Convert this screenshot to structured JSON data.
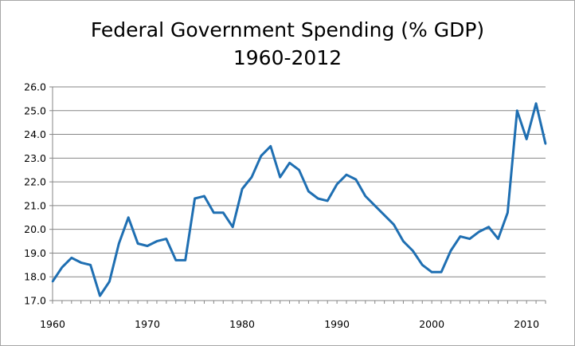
{
  "chart_data": {
    "type": "line",
    "title_lines": [
      "Federal Government Spending (% GDP)",
      "1960-2012"
    ],
    "xlabel": "",
    "ylabel": "",
    "xlim": [
      1960,
      2012
    ],
    "ylim": [
      17.0,
      26.0
    ],
    "y_ticks": [
      "17.0",
      "18.0",
      "19.0",
      "20.0",
      "21.0",
      "22.0",
      "23.0",
      "24.0",
      "25.0",
      "26.0"
    ],
    "x_ticks": [
      "1960",
      "1970",
      "1980",
      "1990",
      "2000",
      "2010"
    ],
    "grid": "horizontal",
    "legend": "none",
    "color": "#1f6fb2",
    "series": [
      {
        "x": [
          1960,
          1961,
          1962,
          1963,
          1964,
          1965,
          1966,
          1967,
          1968,
          1969,
          1970,
          1971,
          1972,
          1973,
          1974,
          1975,
          1976,
          1977,
          1978,
          1979,
          1980,
          1981,
          1982,
          1983,
          1984,
          1985,
          1986,
          1987,
          1988,
          1989,
          1990,
          1991,
          1992,
          1993,
          1994,
          1995,
          1996,
          1997,
          1998,
          1999,
          2000,
          2001,
          2002,
          2003,
          2004,
          2005,
          2006,
          2007,
          2008,
          2009,
          2010,
          2011,
          2012
        ],
        "values": [
          17.8,
          18.4,
          18.8,
          18.6,
          18.5,
          17.2,
          17.8,
          19.4,
          20.5,
          19.4,
          19.3,
          19.5,
          19.6,
          18.7,
          18.7,
          21.3,
          21.4,
          20.7,
          20.7,
          20.1,
          21.7,
          22.2,
          23.1,
          23.5,
          22.2,
          22.8,
          22.5,
          21.6,
          21.3,
          21.2,
          21.9,
          22.3,
          22.1,
          21.4,
          21.0,
          20.6,
          20.2,
          19.5,
          19.1,
          18.5,
          18.2,
          18.2,
          19.1,
          19.7,
          19.6,
          19.9,
          20.1,
          19.6,
          20.7,
          25.0,
          23.8,
          25.3,
          23.6
        ]
      }
    ]
  }
}
